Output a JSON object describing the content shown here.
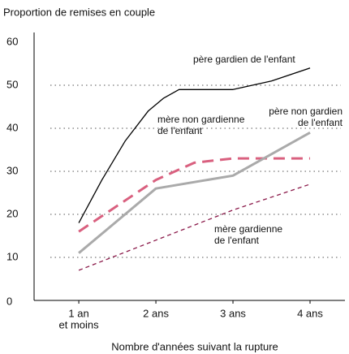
{
  "chart_data": {
    "type": "line",
    "title": "Proportion de remises en couple",
    "x_label": "Nombre d'années suivant la rupture",
    "xlim": [
      0.42,
      4.4
    ],
    "xticks": [
      {
        "value": 1,
        "label": [
          "1 an",
          "et moins"
        ]
      },
      {
        "value": 2,
        "label": [
          "2 ans"
        ]
      },
      {
        "value": 3,
        "label": [
          "3 ans"
        ]
      },
      {
        "value": 4,
        "label": [
          "4 ans"
        ]
      }
    ],
    "ylim": [
      0,
      60
    ],
    "yticks": [
      0,
      10,
      20,
      30,
      40,
      50,
      60
    ],
    "grid": true,
    "series": [
      {
        "name": [
          "père gardien de l'enfant"
        ],
        "color": "#000000",
        "line_style": "solid",
        "linewidth": 1.3,
        "x": [
          1,
          1.3,
          1.6,
          1.9,
          2.1,
          2.3,
          2.6,
          3,
          3.5,
          4
        ],
        "values": [
          18,
          28,
          37,
          44,
          47,
          49,
          49,
          49,
          51,
          54
        ]
      },
      {
        "name": [
          "mère non gardienne",
          "de l'enfant"
        ],
        "color": "#d9607f",
        "line_style": "dashed",
        "linewidth": 3,
        "x": [
          1,
          2,
          2.5,
          3,
          4
        ],
        "values": [
          16,
          28,
          32,
          33,
          33
        ]
      },
      {
        "name": [
          "père non gardien",
          "de l'enfant"
        ],
        "color": "#aaaaaa",
        "line_style": "solid",
        "linewidth": 3,
        "x": [
          1,
          2,
          3,
          4
        ],
        "values": [
          11,
          26,
          29,
          39
        ]
      },
      {
        "name": [
          "mère gardienne",
          "de l'enfant"
        ],
        "color": "#8b1a4a",
        "line_style": "dashed",
        "linewidth": 1.3,
        "x": [
          1,
          2,
          3,
          4
        ],
        "values": [
          7,
          14,
          21,
          27
        ]
      }
    ]
  }
}
